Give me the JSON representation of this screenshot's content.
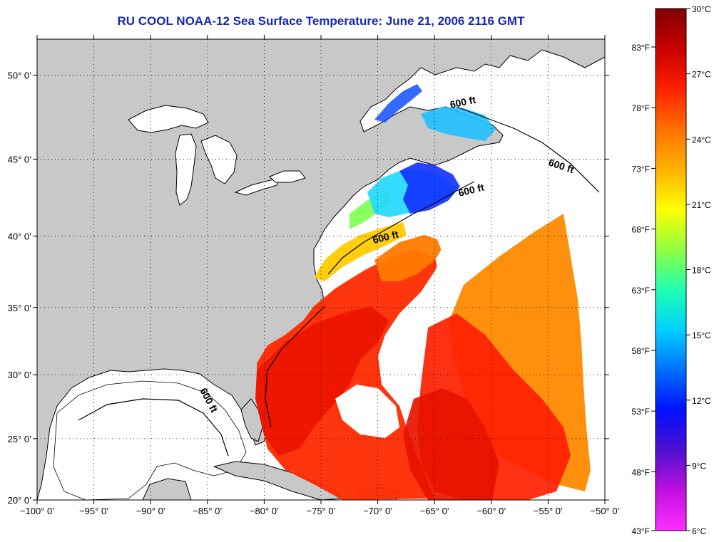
{
  "title": "RU COOL  NOAA-12  Sea Surface Temperature:  June 21, 2006 2116 GMT",
  "map": {
    "lon_range": [
      -100,
      -50
    ],
    "lat_range": [
      20,
      52
    ],
    "lon_ticks": [
      "−100° 0’",
      "−95° 0’",
      "−90° 0’",
      "−85° 0’",
      "−80° 0’",
      "−75° 0’",
      "−70° 0’",
      "−65° 0’",
      "−60° 0’",
      "−55° 0’",
      "−50° 0’"
    ],
    "lat_ticks": [
      "20° 0’",
      "25° 0’",
      "30° 0’",
      "35° 0’",
      "40° 0’",
      "45° 0’",
      "50° 0’"
    ],
    "contour_labels": [
      "600 ft",
      "600 ft",
      "600 ft",
      "600 ft",
      "600 ft"
    ],
    "land_color": "#c8c8c8",
    "cloud_color": "#ffffff"
  },
  "colorbar": {
    "celsius_labels": [
      "30°C",
      "27°C",
      "24°C",
      "21°C",
      "18°C",
      "15°C",
      "12°C",
      "9°C",
      "6°C"
    ],
    "fahrenheit_labels": [
      "83°F",
      "78°F",
      "73°F",
      "68°F",
      "63°F",
      "58°F",
      "53°F",
      "48°F",
      "43°F"
    ],
    "gradient_colors": [
      "#800000",
      "#c80000",
      "#ff2000",
      "#ff7000",
      "#ffb000",
      "#ffff00",
      "#90ff40",
      "#20ffb0",
      "#00d0ff",
      "#0070ff",
      "#0010ff",
      "#5010d0",
      "#c010e0",
      "#ff30ff"
    ]
  }
}
